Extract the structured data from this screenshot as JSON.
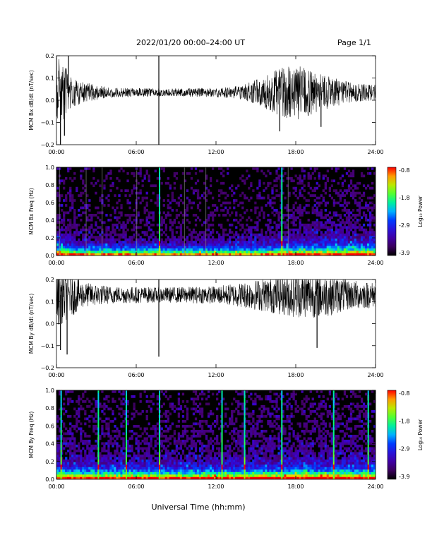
{
  "header": {
    "title": "2022/01/20  00:00–24:00 UT",
    "page": "Page 1/1"
  },
  "footer": {
    "xlabel": "Universal Time (hh:mm)"
  },
  "chart_data": [
    {
      "type": "line",
      "ylabel": "MCM Bx dB/dt (nT/sec)",
      "ylim": [
        -0.2,
        0.2
      ],
      "yticks": [
        "0.2",
        "0.1",
        "0.0",
        "−0.1",
        "−0.2"
      ],
      "xlim": [
        0,
        24
      ],
      "xticks": [
        "00:00",
        "06:00",
        "12:00",
        "18:00",
        "24:00"
      ],
      "series": [
        {
          "baseline": 0.035,
          "envelope": [
            [
              0,
              0.17
            ],
            [
              1,
              0.07
            ],
            [
              2,
              0.04
            ],
            [
              4,
              0.02
            ],
            [
              8,
              0.015
            ],
            [
              12,
              0.018
            ],
            [
              14,
              0.03
            ],
            [
              15.5,
              0.06
            ],
            [
              16.5,
              0.09
            ],
            [
              18,
              0.11
            ],
            [
              20,
              0.07
            ],
            [
              22,
              0.04
            ],
            [
              24,
              0.03
            ]
          ],
          "spikes": [
            [
              0.3,
              -0.2
            ],
            [
              0.6,
              -0.16
            ],
            [
              0.9,
              0.2
            ],
            [
              7.7,
              -0.2
            ],
            [
              7.7,
              0.2
            ],
            [
              16.8,
              -0.14
            ],
            [
              19.9,
              -0.12
            ]
          ]
        }
      ]
    },
    {
      "type": "heatmap",
      "ylabel": "MCM Bx Freq (Hz)",
      "ylim": [
        0,
        1.0
      ],
      "yticks": [
        "1.0",
        "0.8",
        "0.6",
        "0.4",
        "0.2",
        "0.0"
      ],
      "xlim": [
        0,
        24
      ],
      "xticks": [
        "00:00",
        "06:00",
        "12:00",
        "18:00",
        "24:00"
      ],
      "colorbar": {
        "label": "Log₁₀ Power",
        "range": [
          -3.9,
          -0.8
        ],
        "ticks": [
          "-0.8",
          "-1.8",
          "-2.9",
          "-3.9"
        ]
      },
      "activity": [
        [
          0,
          0.9
        ],
        [
          1.5,
          0.55
        ],
        [
          4,
          0.45
        ],
        [
          8,
          0.4
        ],
        [
          12,
          0.4
        ],
        [
          14,
          0.45
        ],
        [
          16,
          0.6
        ],
        [
          18,
          0.75
        ],
        [
          20,
          0.85
        ],
        [
          24,
          0.85
        ]
      ],
      "bright_columns": [
        7.7,
        16.9
      ],
      "gray_columns": [
        0.2,
        2.2,
        3.4,
        6.0,
        9.6,
        11.2,
        17.4
      ]
    },
    {
      "type": "line",
      "ylabel": "MCM By dB/dt (nT/sec)",
      "ylim": [
        -0.2,
        0.2
      ],
      "yticks": [
        "0.2",
        "0.1",
        "0.0",
        "−0.1",
        "−0.2"
      ],
      "xlim": [
        0,
        24
      ],
      "xticks": [
        "00:00",
        "06:00",
        "12:00",
        "18:00",
        "24:00"
      ],
      "series": [
        {
          "baseline": 0.13,
          "envelope": [
            [
              0,
              0.13
            ],
            [
              1,
              0.09
            ],
            [
              2,
              0.05
            ],
            [
              4,
              0.035
            ],
            [
              8,
              0.03
            ],
            [
              12,
              0.035
            ],
            [
              14,
              0.05
            ],
            [
              16,
              0.07
            ],
            [
              18,
              0.09
            ],
            [
              20,
              0.09
            ],
            [
              22,
              0.06
            ],
            [
              24,
              0.05
            ]
          ],
          "spikes": [
            [
              0.3,
              -0.12
            ],
            [
              0.8,
              -0.14
            ],
            [
              7.7,
              -0.15
            ],
            [
              7.7,
              0.2
            ],
            [
              19.6,
              -0.11
            ]
          ]
        }
      ]
    },
    {
      "type": "heatmap",
      "ylabel": "MCM By Freq (Hz)",
      "ylim": [
        0,
        1.0
      ],
      "yticks": [
        "1.0",
        "0.8",
        "0.6",
        "0.4",
        "0.2",
        "0.0"
      ],
      "xlim": [
        0,
        24
      ],
      "xticks": [
        "00:00",
        "06:00",
        "12:00",
        "18:00",
        "24:00"
      ],
      "colorbar": {
        "label": "Log₁₀ Power",
        "range": [
          -3.9,
          -0.8
        ],
        "ticks": [
          "-0.8",
          "-1.8",
          "-2.9",
          "-3.9"
        ]
      },
      "activity": [
        [
          0,
          0.9
        ],
        [
          2,
          0.8
        ],
        [
          6,
          0.75
        ],
        [
          8,
          0.8
        ],
        [
          12,
          0.8
        ],
        [
          14,
          0.85
        ],
        [
          16,
          0.9
        ],
        [
          18,
          0.95
        ],
        [
          20,
          0.95
        ],
        [
          24,
          0.95
        ]
      ],
      "bright_columns": [
        0.3,
        3.1,
        5.2,
        7.7,
        12.4,
        14.1,
        16.9,
        20.8,
        23.4
      ],
      "gray_columns": []
    }
  ]
}
